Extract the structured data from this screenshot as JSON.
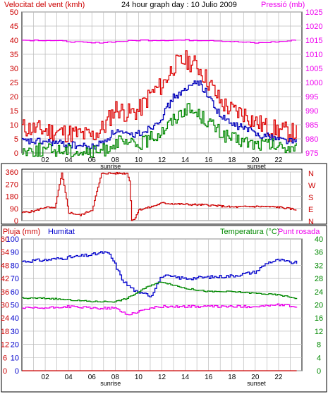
{
  "chart_data": [
    {
      "type": "line",
      "title": "24 hour graph day : 10 Julio 2009",
      "ylabel_left": "Velocitat del vent (kmh)",
      "ylabel_right": "Pressió (mb)",
      "x_ticks": [
        "02",
        "04",
        "06",
        "08",
        "10",
        "12",
        "14",
        "16",
        "18",
        "20",
        "22"
      ],
      "x_markers": [
        "sunrise",
        "sunset"
      ],
      "y_left": {
        "ticks": [
          0,
          5,
          10,
          15,
          20,
          25,
          30,
          35,
          40,
          45,
          50
        ],
        "ylim": [
          0,
          50
        ]
      },
      "y_right": {
        "ticks": [
          975,
          980,
          985,
          990,
          995,
          1000,
          1005,
          1010,
          1015,
          1020,
          1025
        ],
        "ylim": [
          975,
          1025
        ]
      },
      "grid": true,
      "series": [
        {
          "role": "gust",
          "color": "#dd0000",
          "x": [
            0,
            2,
            4,
            6,
            7,
            8,
            9,
            10,
            11,
            12,
            13,
            14,
            15,
            16,
            17,
            18,
            19,
            20,
            21,
            22,
            23.5
          ],
          "values": [
            9,
            8,
            7,
            6,
            9,
            16,
            14,
            15,
            21,
            24,
            31,
            33,
            31,
            25,
            18,
            15,
            14,
            11,
            9,
            8,
            7
          ]
        },
        {
          "role": "average",
          "color": "#0000bb",
          "x": [
            0,
            2,
            4,
            6,
            7,
            8,
            9,
            10,
            11,
            12,
            13,
            14,
            15,
            16,
            17,
            18,
            19,
            20,
            21,
            22,
            23.5
          ],
          "values": [
            4,
            4,
            3,
            2,
            4,
            8,
            6,
            7,
            9,
            13,
            20,
            22,
            26,
            20,
            13,
            10,
            9,
            7,
            6,
            5,
            4
          ]
        },
        {
          "role": "low",
          "color": "#008800",
          "x": [
            0,
            2,
            4,
            6,
            7,
            8,
            9,
            10,
            11,
            12,
            13,
            14,
            15,
            16,
            17,
            18,
            19,
            20,
            21,
            22,
            23.5
          ],
          "values": [
            1,
            1,
            1,
            0,
            1,
            4,
            3,
            3,
            5,
            8,
            12,
            16,
            14,
            11,
            7,
            5,
            4,
            3,
            3,
            2,
            2
          ]
        },
        {
          "role": "pressure",
          "color": "#ee00ee",
          "axis": "right",
          "x": [
            0,
            2,
            4,
            6,
            8,
            10,
            12,
            14,
            16,
            18,
            20,
            22,
            23.5
          ],
          "values": [
            1015,
            1015,
            1014.5,
            1014,
            1014.5,
            1015,
            1015,
            1015,
            1015,
            1014.5,
            1014,
            1014.5,
            1015
          ]
        }
      ]
    },
    {
      "type": "line",
      "y_left": {
        "ticks": [
          0,
          90,
          180,
          270,
          360
        ],
        "ylim": [
          0,
          360
        ]
      },
      "y_right_labels": [
        "N",
        "W",
        "S",
        "E",
        "N"
      ],
      "x": [
        0,
        1,
        2,
        2.8,
        3.4,
        4,
        5,
        6,
        6.8,
        7,
        8,
        9,
        9.2,
        9.4,
        9.6,
        10,
        11,
        12,
        14,
        16,
        18,
        20,
        22,
        23.5
      ],
      "series": [
        {
          "role": "wind-direction",
          "color": "#cc0000",
          "values": [
            60,
            70,
            100,
            90,
            350,
            60,
            40,
            80,
            345,
            350,
            350,
            350,
            300,
            0,
            10,
            80,
            100,
            130,
            120,
            115,
            100,
            105,
            100,
            80
          ]
        }
      ]
    },
    {
      "type": "line",
      "ylabel_left": "Pluja (mm)",
      "ylabel_left2": "Humitat",
      "ylabel_right": "Temperatura (°C)",
      "ylabel_right2": "Punt rosada",
      "y_rain": {
        "ticks": [
          0,
          6,
          12,
          18,
          24,
          30,
          36,
          42,
          48,
          54,
          60
        ],
        "ylim": [
          0,
          60
        ]
      },
      "y_humidity": {
        "ticks": [
          0,
          10,
          20,
          30,
          40,
          50,
          60,
          70,
          80,
          90,
          100
        ],
        "ylim": [
          0,
          100
        ]
      },
      "y_temp": {
        "ticks": [
          0,
          4,
          8,
          12,
          16,
          20,
          24,
          28,
          32,
          36,
          40
        ],
        "ylim": [
          0,
          40
        ]
      },
      "x_ticks": [
        "02",
        "04",
        "06",
        "08",
        "10",
        "12",
        "14",
        "16",
        "18",
        "20",
        "22"
      ],
      "x_markers": [
        "sunrise",
        "sunset"
      ],
      "series": [
        {
          "role": "humidity",
          "color": "#0000cc",
          "axis": "humidity",
          "x": [
            0,
            2,
            4,
            6,
            7,
            7.5,
            8,
            8.5,
            9,
            9.5,
            10,
            10.5,
            11,
            11.5,
            12,
            13,
            14,
            16,
            18,
            20,
            21,
            22,
            23
          ],
          "values": [
            83,
            84,
            86,
            88,
            90,
            88,
            80,
            70,
            65,
            62,
            58,
            60,
            56,
            65,
            72,
            71,
            70,
            71,
            72,
            75,
            82,
            84,
            82
          ]
        },
        {
          "role": "temperature",
          "color": "#008800",
          "axis": "temp",
          "x": [
            0,
            2,
            4,
            6,
            8,
            9,
            10,
            11,
            12,
            13,
            14,
            16,
            18,
            20,
            22,
            23.5
          ],
          "values": [
            22,
            22,
            21.5,
            21,
            21,
            22,
            24,
            26,
            27,
            26,
            25,
            24,
            24,
            23.5,
            23,
            22
          ]
        },
        {
          "role": "dew-point",
          "color": "#ee00ee",
          "axis": "temp",
          "x": [
            0,
            2,
            4,
            6,
            8,
            9,
            10,
            11,
            12,
            14,
            16,
            18,
            20,
            22,
            23.5
          ],
          "values": [
            19,
            19,
            19.5,
            19,
            19,
            17,
            18,
            19,
            19.5,
            19.5,
            19.5,
            19.5,
            19.5,
            20,
            19.5
          ]
        },
        {
          "role": "rain",
          "color": "#cc0000",
          "axis": "rain",
          "x": [
            0,
            23.5
          ],
          "values": [
            0,
            0
          ]
        }
      ]
    }
  ]
}
